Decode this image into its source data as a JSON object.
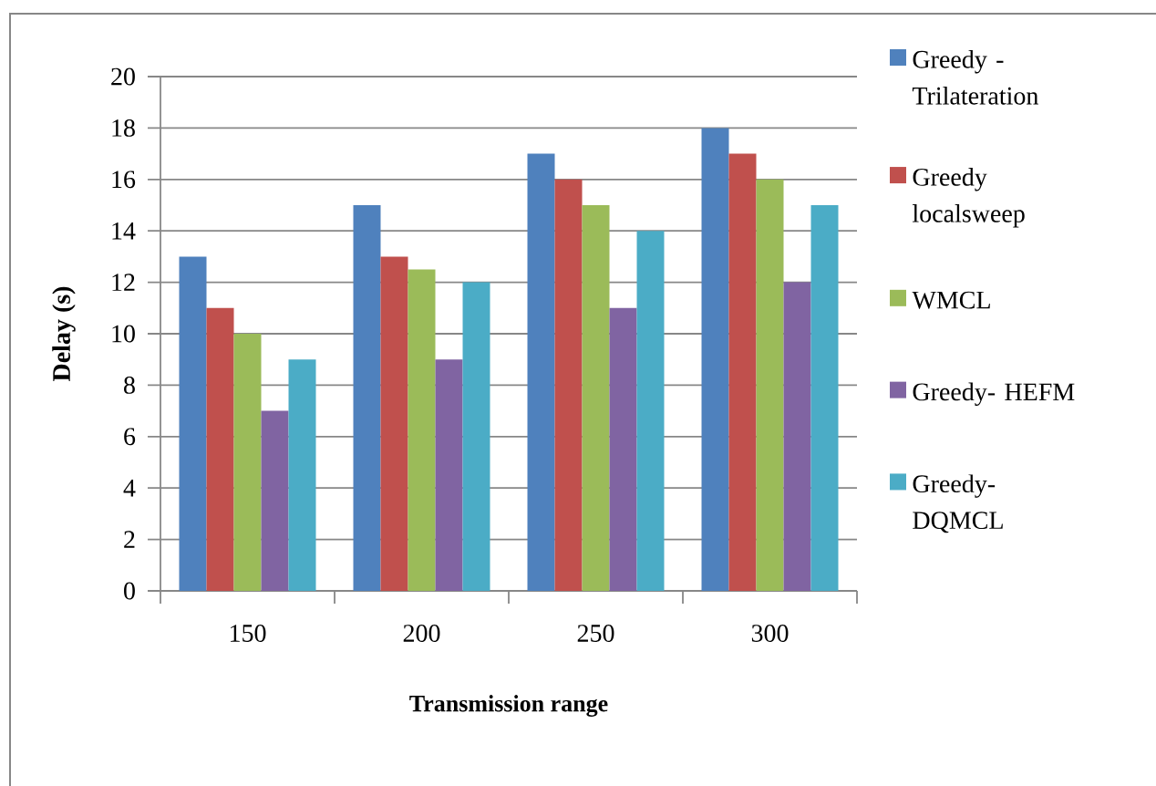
{
  "chart_data": {
    "type": "bar",
    "xlabel": "Transmission range",
    "ylabel": "Delay (s)",
    "categories": [
      "150",
      "200",
      "250",
      "300"
    ],
    "series": [
      {
        "name": "Greedy - Trilateration",
        "color": "#4f81bd",
        "values": [
          13,
          15,
          17,
          18
        ]
      },
      {
        "name": "Greedy localsweep",
        "color": "#c0504d",
        "values": [
          11,
          13,
          16,
          17
        ]
      },
      {
        "name": "WMCL",
        "color": "#9bbb59",
        "values": [
          10,
          12.5,
          15,
          16
        ]
      },
      {
        "name": "Greedy- HEFM",
        "color": "#8064a2",
        "values": [
          7,
          9,
          11,
          12
        ]
      },
      {
        "name": "Greedy- DQMCL",
        "color": "#4bacc6",
        "values": [
          9,
          12,
          14,
          15
        ]
      }
    ],
    "ylim": [
      0,
      20
    ],
    "yticks": [
      0,
      2,
      4,
      6,
      8,
      10,
      12,
      14,
      16,
      18,
      20
    ],
    "grid": "y",
    "legend": "right"
  }
}
